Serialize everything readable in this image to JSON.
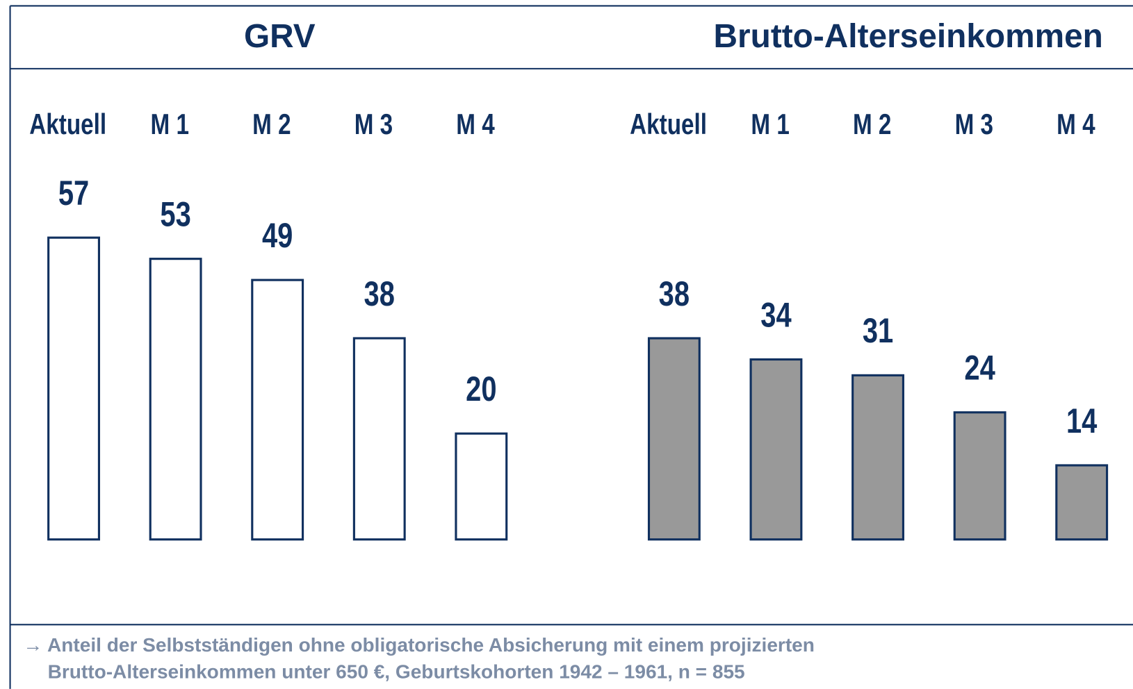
{
  "chart_data": [
    {
      "type": "bar",
      "title": "GRV",
      "categories": [
        "Aktuell",
        "M 1",
        "M 2",
        "M 3",
        "M 4"
      ],
      "values": [
        57,
        53,
        49,
        38,
        20
      ],
      "color": "#ffffff"
    },
    {
      "type": "bar",
      "title": "Brutto-Alterseinkommen",
      "categories": [
        "Aktuell",
        "M 1",
        "M 2",
        "M 3",
        "M 4"
      ],
      "values": [
        38,
        34,
        31,
        24,
        14
      ],
      "color": "#999999"
    }
  ],
  "footnote": [
    "→ Anteil der Selbstständigen ohne obligatorische Absicherung mit einem projizierten",
    "Brutto-Alterseinkommen unter 650 €, Geburtskohorten 1942 – 1961, n = 855"
  ]
}
